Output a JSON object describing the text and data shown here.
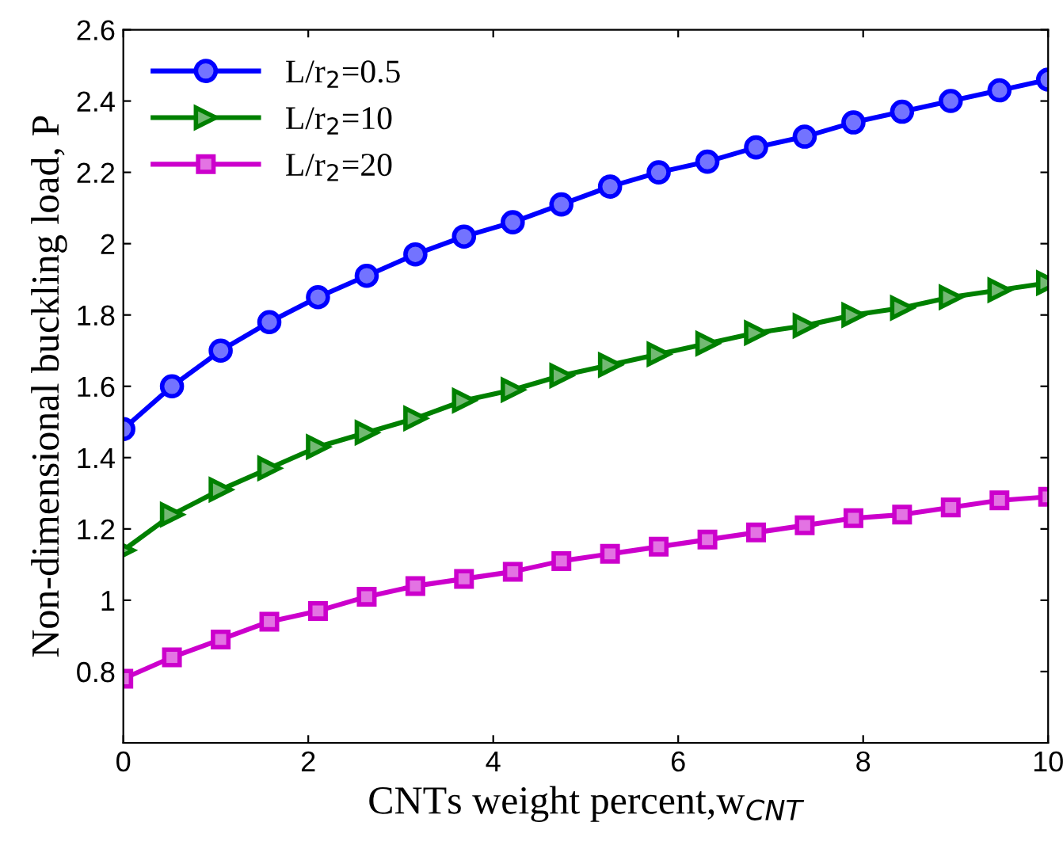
{
  "chart_data": {
    "type": "line",
    "xlabel": "CNTs weight percent,w$_{CNT}$",
    "ylabel": "Non-dimensional buckling load, P",
    "x": [
      0,
      0.526,
      1.053,
      1.579,
      2.105,
      2.632,
      3.158,
      3.684,
      4.211,
      4.737,
      5.263,
      5.789,
      6.316,
      6.842,
      7.368,
      7.895,
      8.421,
      8.947,
      9.474,
      10
    ],
    "series": [
      {
        "name": "L/r$_{2}$=0.5",
        "color": "#0000ff",
        "marker": "circle",
        "values": [
          1.48,
          1.6,
          1.7,
          1.78,
          1.85,
          1.91,
          1.97,
          2.02,
          2.06,
          2.11,
          2.16,
          2.2,
          2.23,
          2.27,
          2.3,
          2.34,
          2.37,
          2.4,
          2.43,
          2.46
        ]
      },
      {
        "name": "L/r$_{2}$=10",
        "color": "#008000",
        "marker": "triangle",
        "values": [
          1.14,
          1.24,
          1.31,
          1.37,
          1.43,
          1.47,
          1.51,
          1.56,
          1.59,
          1.63,
          1.66,
          1.69,
          1.72,
          1.75,
          1.77,
          1.8,
          1.82,
          1.85,
          1.87,
          1.89
        ]
      },
      {
        "name": "L/r$_{2}$=20",
        "color": "#cc00cc",
        "marker": "square",
        "values": [
          0.78,
          0.84,
          0.89,
          0.94,
          0.97,
          1.01,
          1.04,
          1.06,
          1.08,
          1.11,
          1.13,
          1.15,
          1.17,
          1.19,
          1.21,
          1.23,
          1.24,
          1.26,
          1.28,
          1.29
        ]
      }
    ],
    "xlim": [
      0,
      10
    ],
    "xticks": [
      0,
      2,
      4,
      6,
      8,
      10
    ],
    "ylim": [
      0.6,
      2.6
    ],
    "yticks": [
      0.8,
      1,
      1.2,
      1.4,
      1.6,
      1.8,
      2,
      2.2,
      2.4,
      2.6
    ],
    "grid": false,
    "legend": "top left",
    "line_style": "solid"
  }
}
